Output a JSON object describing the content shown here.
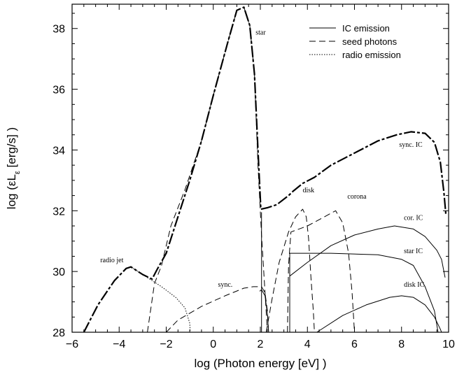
{
  "chart_data": {
    "type": "line",
    "title": "",
    "xlabel": "log (Photon energy [eV] )",
    "ylabel": "log (εLε [erg/s] )",
    "ylabel_parts": {
      "prefix": "log (εL",
      "sub": "ε",
      "suffix": " [erg/s] )"
    },
    "xlim": [
      -6,
      10
    ],
    "ylim": [
      28,
      38.8
    ],
    "xticks": [
      -6,
      -4,
      -2,
      0,
      2,
      4,
      6,
      8,
      10
    ],
    "yticks": [
      28,
      30,
      32,
      34,
      36,
      38
    ],
    "grid": false,
    "legend_position": "top-right",
    "legend": [
      {
        "label": "IC emission",
        "style": "solid"
      },
      {
        "label": "seed photons",
        "style": "dashed"
      },
      {
        "label": "radio emission",
        "style": "dotted"
      }
    ],
    "annotations": [
      {
        "text": "star",
        "x": 1.8,
        "y": 37.8
      },
      {
        "text": "disk",
        "x": 3.8,
        "y": 32.6
      },
      {
        "text": "corona",
        "x": 5.7,
        "y": 32.4
      },
      {
        "text": "sync. IC",
        "x": 7.9,
        "y": 34.1
      },
      {
        "text": "cor. IC",
        "x": 8.1,
        "y": 31.7
      },
      {
        "text": "star IC",
        "x": 8.1,
        "y": 30.6
      },
      {
        "text": "disk IC",
        "x": 8.1,
        "y": 29.5
      },
      {
        "text": "radio jet",
        "x": -4.8,
        "y": 30.3
      },
      {
        "text": "sync.",
        "x": 0.2,
        "y": 29.5
      }
    ],
    "series": [
      {
        "style": "total",
        "points": [
          [
            -5.5,
            28
          ],
          [
            -4.9,
            28.9
          ],
          [
            -4.2,
            29.7
          ],
          [
            -3.7,
            30.1
          ],
          [
            -3.5,
            30.15
          ],
          [
            -3,
            29.9
          ],
          [
            -2.6,
            29.75
          ],
          [
            -2.4,
            30.05
          ],
          [
            -2,
            30.6
          ],
          [
            -1.5,
            31.8
          ],
          [
            -1,
            33
          ],
          [
            -0.5,
            34.3
          ],
          [
            0,
            35.8
          ],
          [
            0.6,
            37.5
          ],
          [
            1,
            38.6
          ],
          [
            1.3,
            38.7
          ],
          [
            1.55,
            38.1
          ],
          [
            1.75,
            36.5
          ],
          [
            1.9,
            34
          ],
          [
            2.02,
            32.05
          ],
          [
            2.3,
            32.1
          ],
          [
            2.7,
            32.2
          ],
          [
            3.2,
            32.5
          ],
          [
            3.4,
            32.65
          ],
          [
            3.8,
            32.9
          ],
          [
            4.3,
            33.1
          ],
          [
            5,
            33.5
          ],
          [
            6,
            33.9
          ],
          [
            7,
            34.3
          ],
          [
            7.8,
            34.5
          ],
          [
            8.4,
            34.6
          ],
          [
            9,
            34.55
          ],
          [
            9.4,
            34.25
          ],
          [
            9.65,
            33.6
          ],
          [
            9.8,
            32.6
          ],
          [
            9.88,
            31.9
          ]
        ]
      },
      {
        "style": "dashed",
        "points": [
          [
            -2.8,
            28
          ],
          [
            -2.5,
            29.6
          ],
          [
            -2.2,
            30.2
          ],
          [
            -1.8,
            31.5
          ],
          [
            -1.2,
            32.7
          ],
          [
            -0.5,
            34.3
          ],
          [
            0,
            35.8
          ],
          [
            0.6,
            37.5
          ],
          [
            1,
            38.6
          ],
          [
            1.3,
            38.7
          ],
          [
            1.55,
            38.1
          ],
          [
            1.75,
            36.5
          ],
          [
            1.9,
            33.5
          ],
          [
            2.05,
            31.2
          ],
          [
            2.2,
            29.3
          ],
          [
            2.3,
            28
          ]
        ]
      },
      {
        "style": "dashed",
        "points": [
          [
            2.25,
            28
          ],
          [
            2.5,
            29.1
          ],
          [
            2.8,
            30.3
          ],
          [
            3.2,
            31.3
          ],
          [
            3.5,
            31.8
          ],
          [
            3.8,
            32.05
          ],
          [
            3.95,
            31.8
          ],
          [
            4.05,
            31.1
          ],
          [
            4.15,
            29.8
          ],
          [
            4.25,
            28.7
          ],
          [
            4.3,
            28
          ]
        ]
      },
      {
        "style": "dashed",
        "points": [
          [
            3.15,
            28
          ],
          [
            3.2,
            30.2
          ],
          [
            3.3,
            31.3
          ],
          [
            4,
            31.5
          ],
          [
            4.6,
            31.75
          ],
          [
            5.2,
            32
          ],
          [
            5.5,
            31.6
          ],
          [
            5.75,
            30.6
          ],
          [
            5.9,
            29.3
          ],
          [
            6,
            28
          ]
        ]
      },
      {
        "style": "dashed",
        "points": [
          [
            -2,
            28
          ],
          [
            -1.5,
            28.4
          ],
          [
            -0.5,
            28.85
          ],
          [
            0.5,
            29.2
          ],
          [
            1.3,
            29.45
          ],
          [
            1.7,
            29.5
          ],
          [
            2.05,
            29.5
          ],
          [
            2.2,
            29.3
          ],
          [
            2.3,
            28.7
          ],
          [
            2.35,
            28
          ]
        ]
      },
      {
        "style": "dotted",
        "points": [
          [
            -3.5,
            30.15
          ],
          [
            -2.8,
            29.8
          ],
          [
            -2.2,
            29.5
          ],
          [
            -1.6,
            29.15
          ],
          [
            -1.2,
            28.8
          ],
          [
            -1,
            28.3
          ],
          [
            -0.98,
            28
          ]
        ]
      },
      {
        "style": "solid",
        "points": [
          [
            1.97,
            29.35
          ],
          [
            2.05,
            29.4
          ],
          [
            2.2,
            29.2
          ],
          [
            2.3,
            28.6
          ],
          [
            2.35,
            28
          ]
        ]
      },
      {
        "style": "solid",
        "points": [
          [
            2.05,
            31.95
          ],
          [
            2.05,
            28
          ]
        ]
      },
      {
        "style": "solid",
        "points": [
          [
            3.25,
            29.85
          ],
          [
            4,
            30.3
          ],
          [
            5,
            30.85
          ],
          [
            6,
            31.2
          ],
          [
            7,
            31.4
          ],
          [
            7.7,
            31.5
          ],
          [
            8.5,
            31.4
          ],
          [
            9,
            31.15
          ],
          [
            9.5,
            30.7
          ],
          [
            9.7,
            30.4
          ],
          [
            9.85,
            29.8
          ]
        ]
      },
      {
        "style": "solid",
        "points": [
          [
            3.25,
            28
          ],
          [
            3.25,
            30.6
          ],
          [
            5,
            30.6
          ],
          [
            7,
            30.55
          ],
          [
            8,
            30.4
          ],
          [
            8.5,
            30.2
          ],
          [
            9,
            29.5
          ],
          [
            9.4,
            28.7
          ],
          [
            9.55,
            28
          ]
        ]
      },
      {
        "style": "solid",
        "points": [
          [
            4.4,
            28
          ],
          [
            5.5,
            28.55
          ],
          [
            6.5,
            28.9
          ],
          [
            7.5,
            29.15
          ],
          [
            8,
            29.2
          ],
          [
            8.5,
            29.15
          ],
          [
            9,
            28.9
          ],
          [
            9.4,
            28.5
          ],
          [
            9.65,
            28.1
          ],
          [
            9.7,
            28
          ]
        ]
      }
    ]
  }
}
